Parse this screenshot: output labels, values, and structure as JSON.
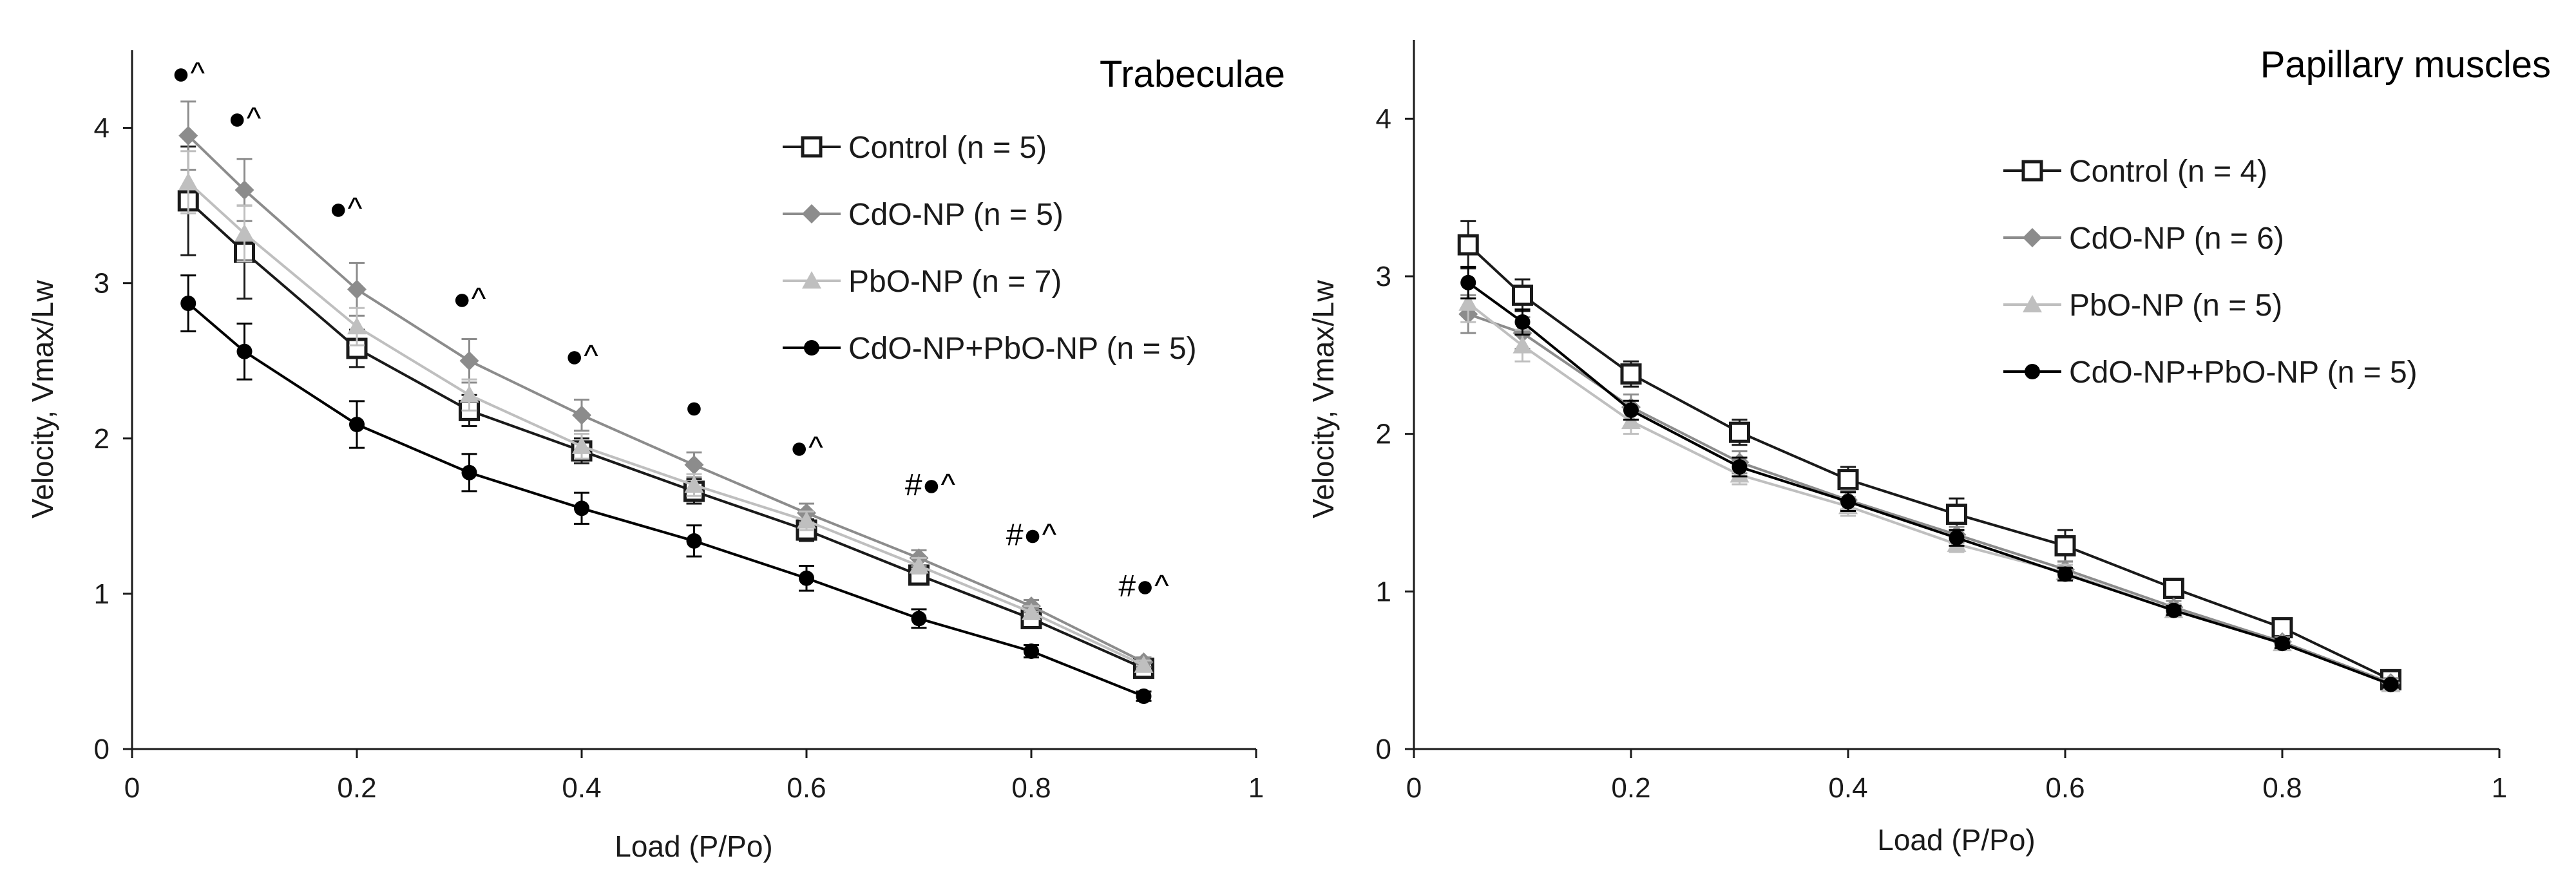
{
  "chart_data": [
    {
      "type": "line",
      "title": "Trabeculae",
      "xlabel": "Load (P/Po)",
      "ylabel": "Velocity, Vmax/Lw",
      "xlim": [
        0,
        1
      ],
      "ylim": [
        0,
        4.5
      ],
      "xticks": [
        0,
        0.2,
        0.4,
        0.6,
        0.8,
        1
      ],
      "xtick_labels": [
        "0",
        "0.2",
        "0.4",
        "0.6",
        "0.8",
        "1"
      ],
      "yticks": [
        0,
        1,
        2,
        3,
        4
      ],
      "ytick_labels": [
        "0",
        "1",
        "2",
        "3",
        "4"
      ],
      "legend_position": "top-right",
      "x": [
        0.05,
        0.1,
        0.2,
        0.3,
        0.4,
        0.5,
        0.6,
        0.7,
        0.8,
        0.9
      ],
      "series": [
        {
          "name": "Control (n = 5)",
          "marker": "square-open",
          "color": "#1a1a1a",
          "values": [
            3.53,
            3.2,
            2.58,
            2.18,
            1.92,
            1.66,
            1.41,
            1.12,
            0.84,
            0.52
          ],
          "errors": [
            0.35,
            0.3,
            0.12,
            0.1,
            0.08,
            0.08,
            0.07,
            0.06,
            0.05,
            0.04
          ]
        },
        {
          "name": "CdO-NP (n = 5)",
          "marker": "diamond",
          "color": "#8c8c8c",
          "values": [
            3.95,
            3.6,
            2.96,
            2.5,
            2.15,
            1.83,
            1.52,
            1.23,
            0.92,
            0.56
          ],
          "errors": [
            0.22,
            0.2,
            0.17,
            0.14,
            0.1,
            0.08,
            0.06,
            0.05,
            0.04,
            0.03
          ]
        },
        {
          "name": "PbO-NP (n = 7)",
          "marker": "triangle",
          "color": "#bfbfbf",
          "values": [
            3.65,
            3.32,
            2.72,
            2.28,
            1.95,
            1.7,
            1.47,
            1.18,
            0.88,
            0.54
          ],
          "errors": [
            0.2,
            0.18,
            0.12,
            0.1,
            0.08,
            0.07,
            0.06,
            0.05,
            0.04,
            0.03
          ]
        },
        {
          "name": "CdO-NP+PbO-NP (n = 5)",
          "marker": "circle",
          "color": "#000000",
          "values": [
            2.87,
            2.56,
            2.09,
            1.78,
            1.55,
            1.34,
            1.1,
            0.84,
            0.63,
            0.34
          ],
          "errors": [
            0.18,
            0.18,
            0.15,
            0.12,
            0.1,
            0.1,
            0.08,
            0.06,
            0.04,
            0.03
          ]
        }
      ],
      "annotations": [
        {
          "x": 0.05,
          "y": 4.35,
          "text": "●^"
        },
        {
          "x": 0.1,
          "y": 4.06,
          "text": "●^"
        },
        {
          "x": 0.19,
          "y": 3.48,
          "text": "●^"
        },
        {
          "x": 0.3,
          "y": 2.9,
          "text": "●^"
        },
        {
          "x": 0.4,
          "y": 2.53,
          "text": "●^"
        },
        {
          "x": 0.5,
          "y": 2.2,
          "text": "●"
        },
        {
          "x": 0.6,
          "y": 1.94,
          "text": "●^"
        },
        {
          "x": 0.71,
          "y": 1.7,
          "text": "#●^"
        },
        {
          "x": 0.8,
          "y": 1.38,
          "text": "#●^"
        },
        {
          "x": 0.9,
          "y": 1.05,
          "text": "#●^"
        }
      ]
    },
    {
      "type": "line",
      "title": "Papillary muscles",
      "xlabel": "Load (P/Po)",
      "ylabel": "Velocity, Vmax/Lw",
      "xlim": [
        0,
        1
      ],
      "ylim": [
        0,
        4.5
      ],
      "xticks": [
        0,
        0.2,
        0.4,
        0.6,
        0.8,
        1
      ],
      "xtick_labels": [
        "0",
        "0.2",
        "0.4",
        "0.6",
        "0.8",
        "1"
      ],
      "yticks": [
        0,
        1,
        2,
        3,
        4
      ],
      "ytick_labels": [
        "0",
        "1",
        "2",
        "3",
        "4"
      ],
      "legend_position": "top-right",
      "x": [
        0.05,
        0.1,
        0.2,
        0.3,
        0.4,
        0.5,
        0.6,
        0.7,
        0.8,
        0.9
      ],
      "series": [
        {
          "name": "Control (n = 4)",
          "marker": "square-open",
          "color": "#1a1a1a",
          "values": [
            3.2,
            2.88,
            2.38,
            2.01,
            1.71,
            1.49,
            1.29,
            1.02,
            0.77,
            0.44
          ],
          "errors": [
            0.15,
            0.1,
            0.08,
            0.08,
            0.08,
            0.1,
            0.1,
            0.05,
            0.04,
            0.03
          ]
        },
        {
          "name": "CdO-NP (n = 6)",
          "marker": "diamond",
          "color": "#8c8c8c",
          "values": [
            2.76,
            2.64,
            2.17,
            1.82,
            1.58,
            1.36,
            1.14,
            0.9,
            0.68,
            0.42
          ],
          "errors": [
            0.12,
            0.1,
            0.08,
            0.07,
            0.06,
            0.05,
            0.05,
            0.04,
            0.03,
            0.03
          ]
        },
        {
          "name": "PbO-NP (n = 5)",
          "marker": "triangle",
          "color": "#bfbfbf",
          "values": [
            2.83,
            2.56,
            2.08,
            1.74,
            1.54,
            1.3,
            1.12,
            0.88,
            0.67,
            0.41
          ],
          "errors": [
            0.12,
            0.1,
            0.08,
            0.06,
            0.06,
            0.05,
            0.05,
            0.04,
            0.03,
            0.03
          ]
        },
        {
          "name": "CdO-NP+PbO-NP (n = 5)",
          "marker": "circle",
          "color": "#000000",
          "values": [
            2.96,
            2.71,
            2.15,
            1.79,
            1.57,
            1.34,
            1.11,
            0.88,
            0.67,
            0.41
          ],
          "errors": [
            0.1,
            0.08,
            0.06,
            0.06,
            0.06,
            0.05,
            0.04,
            0.03,
            0.03,
            0.02
          ]
        }
      ],
      "annotations": []
    }
  ]
}
